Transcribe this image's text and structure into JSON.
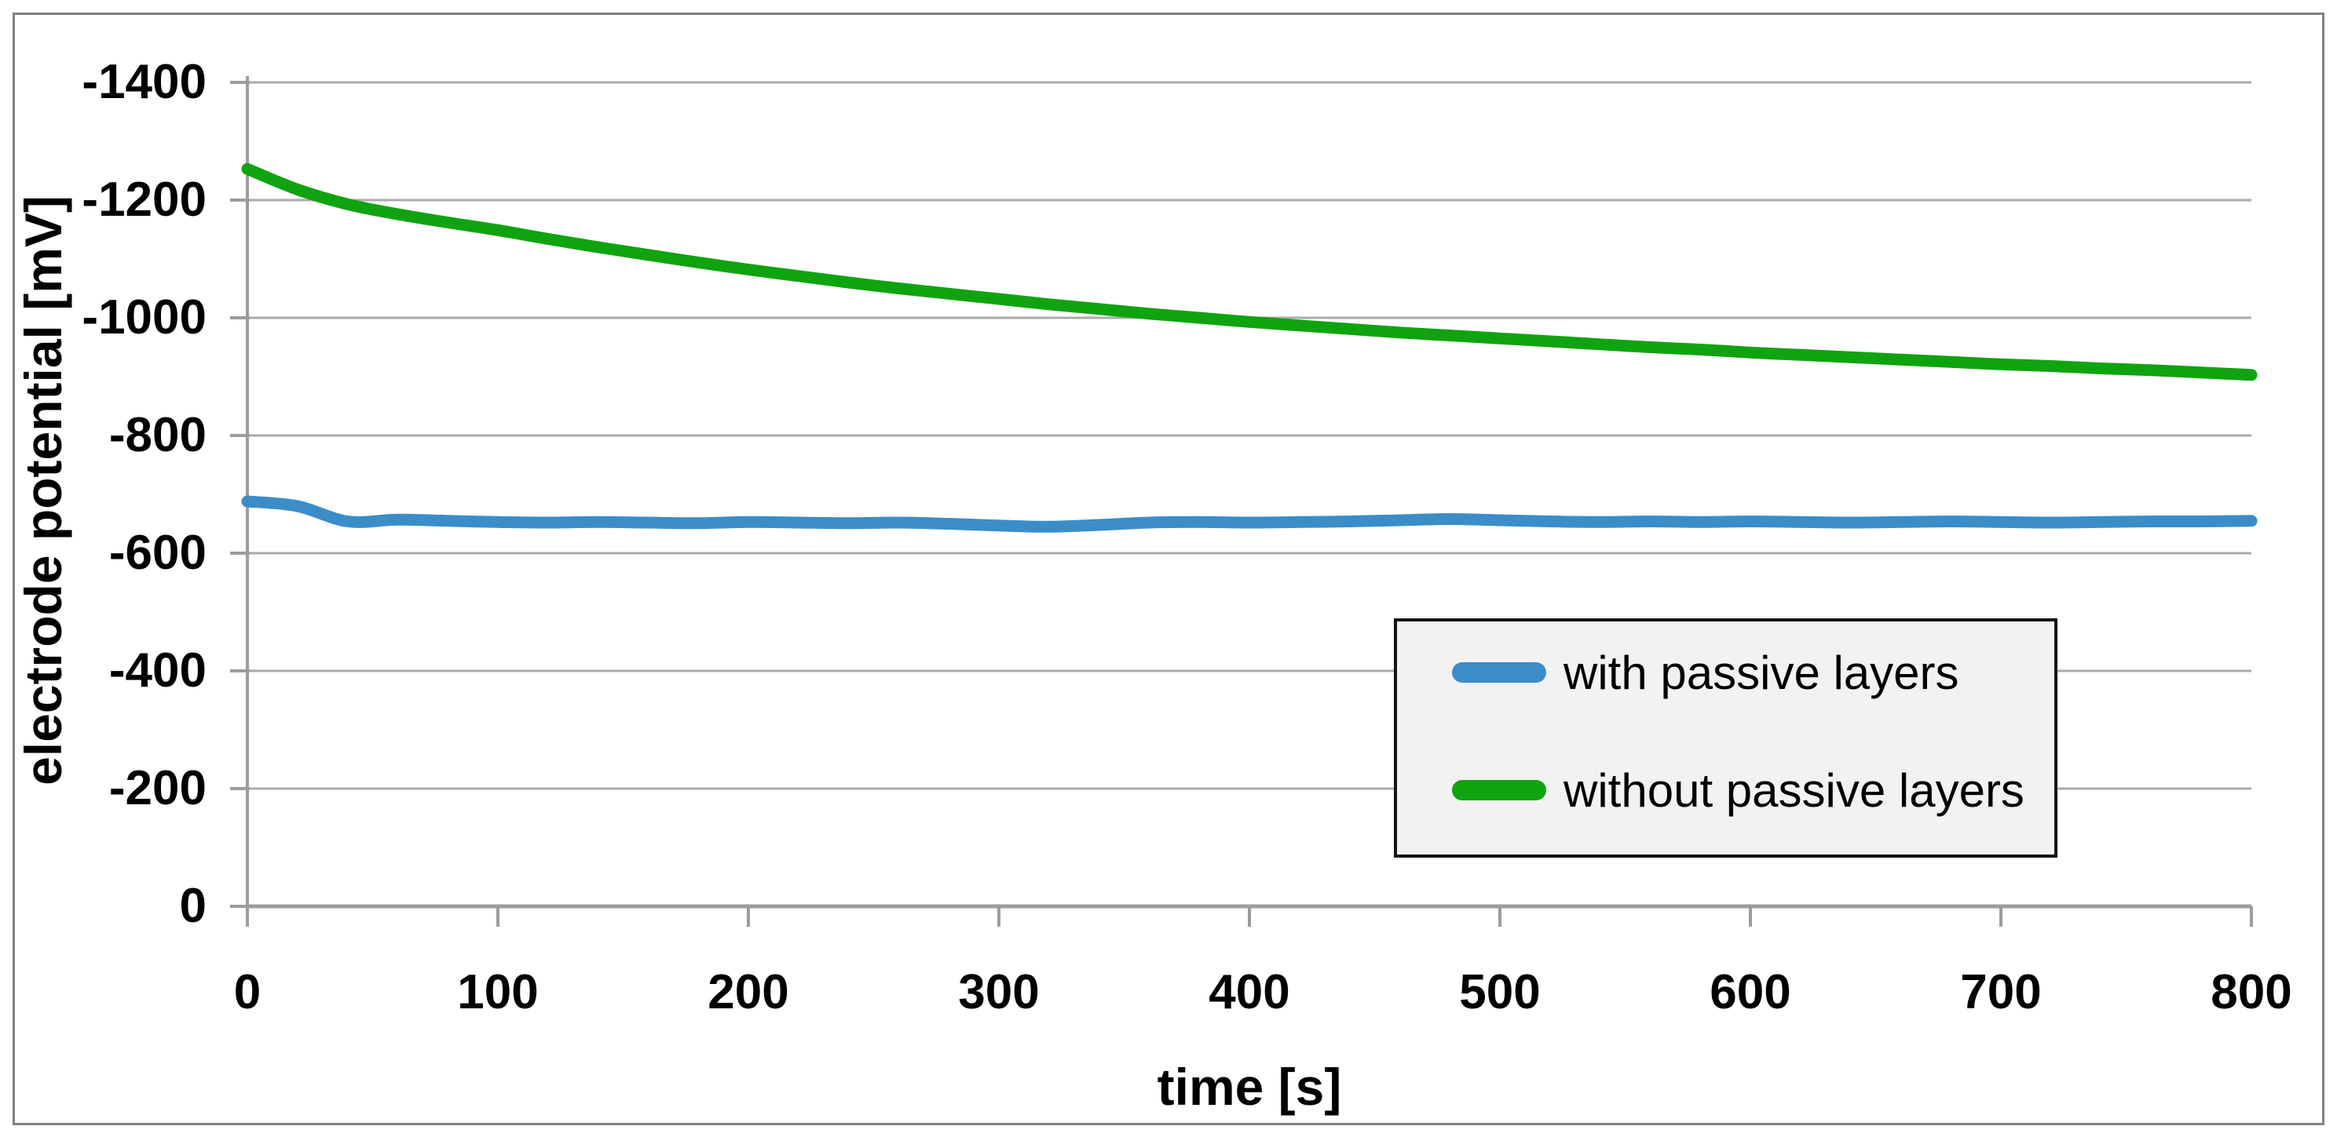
{
  "figure": {
    "background": "#ffffff",
    "border_color": "#828282"
  },
  "style": {
    "gridline_color": "#ababab",
    "axis_color": "#9c9c9c",
    "tick_color": "#9c9c9c",
    "text_color": "#000000",
    "legend_fill": "#f2f2f2",
    "legend_border": "#141414",
    "series_stroke_width": 15
  },
  "legend": {
    "items": [
      {
        "label": "with passive layers",
        "color": "#3b8dc8"
      },
      {
        "label": "without passive layers",
        "color": "#10a310"
      }
    ]
  },
  "chart_data": {
    "type": "line",
    "title": "",
    "xlabel": "time [s]",
    "ylabel": "electrode potential [mV]",
    "xlim": [
      0,
      800
    ],
    "ylim": [
      -1400,
      0
    ],
    "y_axis_reversed": true,
    "grid": "horizontal gridlines every 200 mV",
    "legend_position": "inside bottom-right",
    "x_tick_values": [
      0,
      100,
      200,
      300,
      400,
      500,
      600,
      700,
      800
    ],
    "x_tick_labels": [
      "0",
      "100",
      "200",
      "300",
      "400",
      "500",
      "600",
      "700",
      "800"
    ],
    "y_tick_values": [
      -1400,
      -1200,
      -1000,
      -800,
      -600,
      -400,
      -200,
      0
    ],
    "y_tick_labels": [
      "-1400",
      "-1200",
      "-1000",
      "-800",
      "-600",
      "-400",
      "-200",
      "0"
    ],
    "x": [
      0,
      20,
      40,
      60,
      80,
      100,
      120,
      140,
      160,
      180,
      200,
      220,
      240,
      260,
      280,
      300,
      320,
      340,
      360,
      380,
      400,
      420,
      440,
      460,
      480,
      500,
      520,
      540,
      560,
      580,
      600,
      620,
      640,
      660,
      680,
      700,
      720,
      740,
      760,
      780,
      800
    ],
    "series": [
      {
        "name": "with passive layers",
        "color": "#3b8dc8",
        "values": [
          -688,
          -680,
          -654,
          -657,
          -655,
          -653,
          -652,
          -653,
          -652,
          -651,
          -653,
          -652,
          -651,
          -652,
          -650,
          -647,
          -645,
          -648,
          -652,
          -653,
          -652,
          -653,
          -654,
          -656,
          -658,
          -656,
          -654,
          -653,
          -654,
          -653,
          -654,
          -653,
          -652,
          -653,
          -654,
          -653,
          -652,
          -653,
          -654,
          -654,
          -655
        ]
      },
      {
        "name": "without passive layers",
        "color": "#10a310",
        "values": [
          -1253,
          -1218,
          -1193,
          -1176,
          -1162,
          -1149,
          -1134,
          -1120,
          -1107,
          -1094,
          -1082,
          -1071,
          -1060,
          -1050,
          -1041,
          -1032,
          -1023,
          -1015,
          -1007,
          -1000,
          -993,
          -987,
          -981,
          -975,
          -970,
          -965,
          -960,
          -955,
          -950,
          -946,
          -941,
          -937,
          -933,
          -929,
          -925,
          -921,
          -918,
          -914,
          -911,
          -907,
          -903
        ]
      }
    ]
  }
}
